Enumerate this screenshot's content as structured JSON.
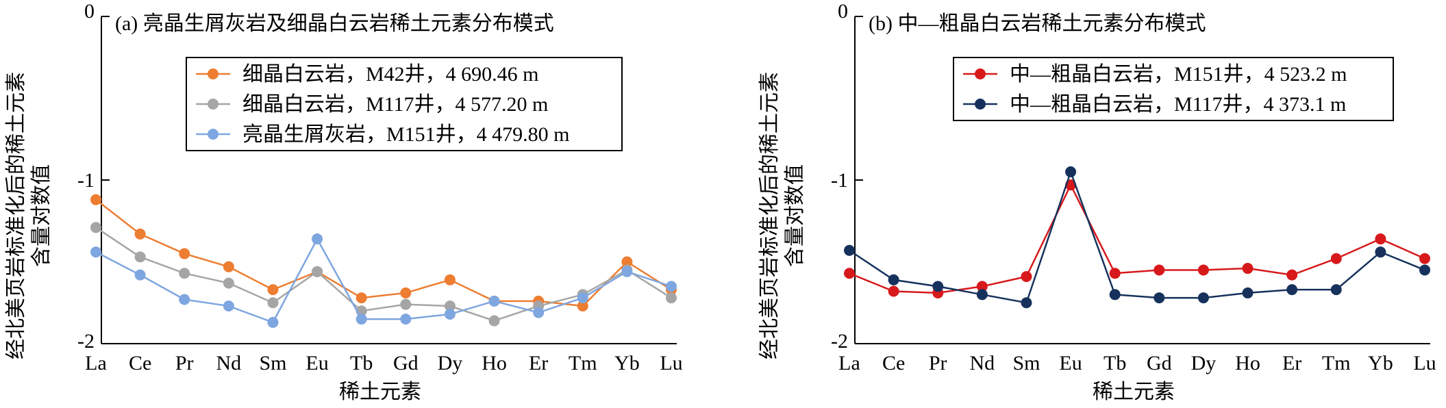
{
  "figure": {
    "y_axis_label_line1": "经北美页岩标准化后的稀土元素",
    "y_axis_label_line2": "含量对数值",
    "x_axis_label": "稀土元素"
  },
  "chart_data": [
    {
      "type": "line",
      "title": "(a) 亮晶生屑灰岩及细晶白云岩稀土元素分布模式",
      "xlabel": "稀土元素",
      "ylabel": "经北美页岩标准化后的稀土元素含量对数值",
      "categories": [
        "La",
        "Ce",
        "Pr",
        "Nd",
        "Sm",
        "Eu",
        "Tb",
        "Gd",
        "Dy",
        "Ho",
        "Er",
        "Tm",
        "Yb",
        "Lu"
      ],
      "ylim": [
        -2,
        0
      ],
      "yticks": [
        "0",
        "-1",
        "-2"
      ],
      "grid": false,
      "legend_position": "top-right",
      "series": [
        {
          "name": "细晶白云岩，M42井，4 690.46 m",
          "color": "#ED7D31",
          "values": [
            -1.12,
            -1.33,
            -1.45,
            -1.53,
            -1.67,
            -1.56,
            -1.72,
            -1.69,
            -1.61,
            -1.74,
            -1.74,
            -1.77,
            -1.5,
            -1.67
          ]
        },
        {
          "name": "细晶白云岩，M117井，4 577.20 m",
          "color": "#A5A5A5",
          "values": [
            -1.29,
            -1.47,
            -1.57,
            -1.63,
            -1.75,
            -1.56,
            -1.8,
            -1.76,
            -1.77,
            -1.86,
            -1.77,
            -1.7,
            -1.55,
            -1.72
          ]
        },
        {
          "name": "亮晶生屑灰岩，M151井，4 479.80 m",
          "color": "#7EA6E0",
          "values": [
            -1.44,
            -1.58,
            -1.73,
            -1.77,
            -1.87,
            -1.36,
            -1.85,
            -1.85,
            -1.82,
            -1.74,
            -1.81,
            -1.72,
            -1.56,
            -1.65
          ]
        }
      ]
    },
    {
      "type": "line",
      "title": "(b) 中—粗晶白云岩稀土元素分布模式",
      "xlabel": "稀土元素",
      "ylabel": "经北美页岩标准化后的稀土元素含量对数值",
      "categories": [
        "La",
        "Ce",
        "Pr",
        "Nd",
        "Sm",
        "Eu",
        "Tb",
        "Gd",
        "Dy",
        "Ho",
        "Er",
        "Tm",
        "Yb",
        "Lu"
      ],
      "ylim": [
        -2,
        0
      ],
      "yticks": [
        "0",
        "-1",
        "-2"
      ],
      "grid": false,
      "legend_position": "top-right",
      "series": [
        {
          "name": "中—粗晶白云岩，M151井，4 523.2 m",
          "color": "#D7191C",
          "values": [
            -1.57,
            -1.68,
            -1.69,
            -1.65,
            -1.59,
            -1.03,
            -1.57,
            -1.55,
            -1.55,
            -1.54,
            -1.58,
            -1.48,
            -1.36,
            -1.48
          ]
        },
        {
          "name": "中—粗晶白云岩，M117井，4 373.1 m",
          "color": "#16325C",
          "values": [
            -1.43,
            -1.61,
            -1.65,
            -1.7,
            -1.75,
            -0.95,
            -1.7,
            -1.72,
            -1.72,
            -1.69,
            -1.67,
            -1.67,
            -1.44,
            -1.55
          ]
        }
      ]
    }
  ]
}
